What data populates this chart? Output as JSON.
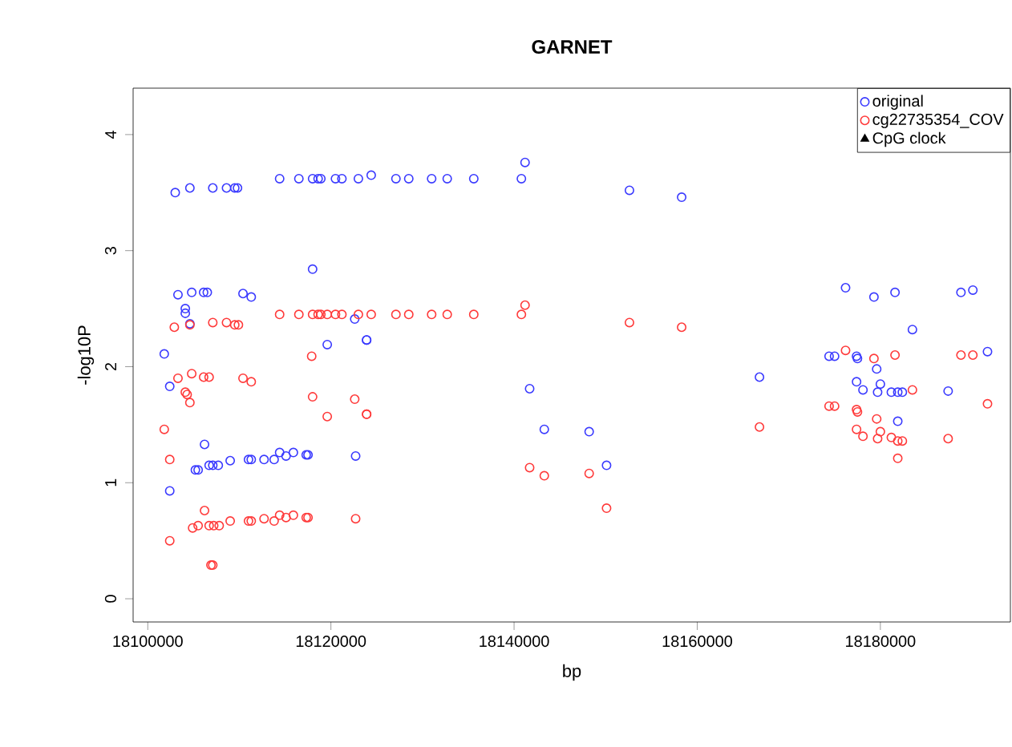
{
  "chart_data": {
    "type": "scatter",
    "title": "GARNET",
    "xlabel": "bp",
    "ylabel": "-log10P",
    "xlim": [
      18098400,
      18194200
    ],
    "ylim": [
      -0.2,
      4.4
    ],
    "xticks": [
      18100000,
      18120000,
      18140000,
      18160000,
      18180000
    ],
    "yticks": [
      0,
      1,
      2,
      3,
      4
    ],
    "grid": false,
    "legend": "top right",
    "marker": "circle",
    "series": [
      {
        "name": "original",
        "color": "#3a3aff",
        "x": [
          18103000,
          18104600,
          18107100,
          18108600,
          18109500,
          18109800,
          18114400,
          18116500,
          18118000,
          18118600,
          18118900,
          18120500,
          18121200,
          18123000,
          18124400,
          18127100,
          18128500,
          18131000,
          18132700,
          18135600,
          18140800,
          18141200,
          18152600,
          18158300,
          18103300,
          18104800,
          18106100,
          18106500,
          18110400,
          18111300,
          18118000,
          18104100,
          18104100,
          18104600,
          18122600,
          18119600,
          18123900,
          18123900,
          18101800,
          18102400,
          18141700,
          18143300,
          18106200,
          18105200,
          18105500,
          18106700,
          18107100,
          18107700,
          18109000,
          18111000,
          18111300,
          18112700,
          18113800,
          18114400,
          18115100,
          18115900,
          18117300,
          18117500,
          18122700,
          18102400,
          18148200,
          18150100,
          18166800,
          18176200,
          18179300,
          18181600,
          18183500,
          18188800,
          18190100,
          18191700,
          18174400,
          18175000,
          18177400,
          18177500,
          18179600,
          18177400,
          18178100,
          18180000,
          18179700,
          18181200,
          18181900,
          18182400,
          18181900,
          18187400
        ],
        "values": [
          3.5,
          3.54,
          3.54,
          3.54,
          3.54,
          3.54,
          3.62,
          3.62,
          3.62,
          3.62,
          3.62,
          3.62,
          3.62,
          3.62,
          3.65,
          3.62,
          3.62,
          3.62,
          3.62,
          3.62,
          3.62,
          3.76,
          3.52,
          3.46,
          2.62,
          2.64,
          2.64,
          2.64,
          2.63,
          2.6,
          2.84,
          2.5,
          2.46,
          2.37,
          2.41,
          2.19,
          2.23,
          2.23,
          2.11,
          1.83,
          1.81,
          1.46,
          1.33,
          1.11,
          1.11,
          1.15,
          1.15,
          1.15,
          1.19,
          1.2,
          1.2,
          1.2,
          1.2,
          1.26,
          1.23,
          1.26,
          1.24,
          1.24,
          1.23,
          0.93,
          1.44,
          1.15,
          1.91,
          2.68,
          2.6,
          2.64,
          2.32,
          2.64,
          2.66,
          2.13,
          2.09,
          2.09,
          2.09,
          2.07,
          1.98,
          1.87,
          1.8,
          1.85,
          1.78,
          1.78,
          1.78,
          1.78,
          1.53,
          1.79
        ]
      },
      {
        "name": "cg22735354_COV",
        "color": "#ff3a3a",
        "x": [
          18102900,
          18104600,
          18107100,
          18108600,
          18109500,
          18109900,
          18114400,
          18116500,
          18118000,
          18118600,
          18118900,
          18119600,
          18120500,
          18121200,
          18123000,
          18124400,
          18127100,
          18128500,
          18131000,
          18132700,
          18135600,
          18140800,
          18141200,
          18117900,
          18103300,
          18104800,
          18106100,
          18106700,
          18110400,
          18111300,
          18104100,
          18104300,
          18104600,
          18118000,
          18122600,
          18119600,
          18123900,
          18123900,
          18101800,
          18102400,
          18141700,
          18143300,
          18106200,
          18104900,
          18105500,
          18106700,
          18107200,
          18107800,
          18109000,
          18111000,
          18111300,
          18112700,
          18113800,
          18114400,
          18115100,
          18115900,
          18117300,
          18117500,
          18122700,
          18102400,
          18106900,
          18107100,
          18148200,
          18150100,
          18152600,
          18158300,
          18166800,
          18174400,
          18175000,
          18176200,
          18177400,
          18177500,
          18179300,
          18181600,
          18183500,
          18188800,
          18190100,
          18191700,
          18179600,
          18177400,
          18178100,
          18180000,
          18179700,
          18181200,
          18181900,
          18182400,
          18181900,
          18187400
        ],
        "values": [
          2.34,
          2.36,
          2.38,
          2.38,
          2.36,
          2.36,
          2.45,
          2.45,
          2.45,
          2.45,
          2.45,
          2.45,
          2.45,
          2.45,
          2.45,
          2.45,
          2.45,
          2.45,
          2.45,
          2.45,
          2.45,
          2.45,
          2.53,
          2.09,
          1.9,
          1.94,
          1.91,
          1.91,
          1.9,
          1.87,
          1.78,
          1.76,
          1.69,
          1.74,
          1.72,
          1.57,
          1.59,
          1.59,
          1.46,
          1.2,
          1.13,
          1.06,
          0.76,
          0.61,
          0.63,
          0.63,
          0.63,
          0.63,
          0.67,
          0.67,
          0.67,
          0.69,
          0.67,
          0.72,
          0.7,
          0.72,
          0.7,
          0.7,
          0.69,
          0.5,
          0.29,
          0.29,
          1.08,
          0.78,
          2.38,
          2.34,
          1.48,
          1.66,
          1.66,
          2.14,
          1.63,
          1.61,
          2.07,
          2.1,
          1.8,
          2.1,
          2.1,
          1.68,
          1.55,
          1.46,
          1.4,
          1.44,
          1.38,
          1.39,
          1.36,
          1.36,
          1.21,
          1.38
        ]
      },
      {
        "name": "CpG clock",
        "color": "#000000",
        "marker": "triangle"
      }
    ]
  }
}
